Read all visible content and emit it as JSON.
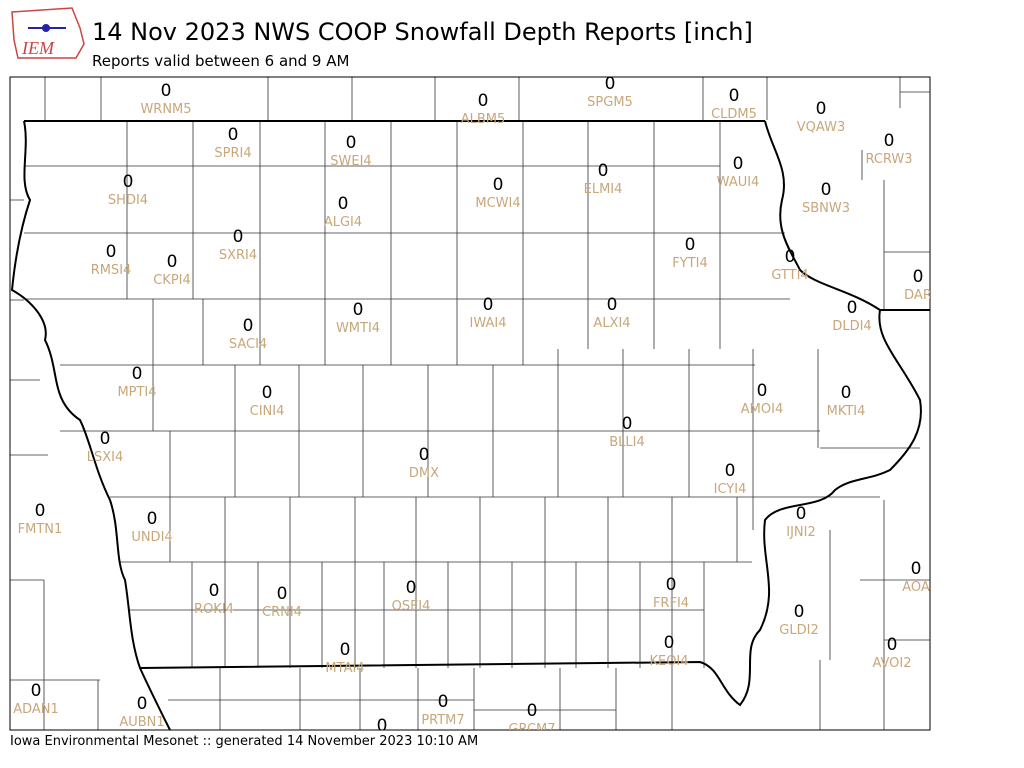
{
  "header": {
    "title": "14 Nov 2023 NWS COOP Snowfall Depth Reports [inch]",
    "subtitle": "Reports valid between 6 and 9 AM",
    "logo": "IEM"
  },
  "footer": "Iowa Environmental Mesonet :: generated 14 November 2023 10:10 AM",
  "stations": [
    {
      "label": "WRNM5",
      "value": 0
    },
    {
      "label": "ALBM5",
      "value": 0
    },
    {
      "label": "SPGM5",
      "value": 0
    },
    {
      "label": "CLDM5",
      "value": 0
    },
    {
      "label": "VQAW3",
      "value": 0
    },
    {
      "label": "RCRW3",
      "value": 0
    },
    {
      "label": "SPRI4",
      "value": 0
    },
    {
      "label": "SWEI4",
      "value": 0
    },
    {
      "label": "SHDI4",
      "value": 0
    },
    {
      "label": "ELMI4",
      "value": 0
    },
    {
      "label": "WAUI4",
      "value": 0
    },
    {
      "label": "MCWI4",
      "value": 0
    },
    {
      "label": "SBNW3",
      "value": 0
    },
    {
      "label": "ALGI4",
      "value": 0
    },
    {
      "label": "SXRI4",
      "value": 0
    },
    {
      "label": "FYTI4",
      "value": 0
    },
    {
      "label": "RMSI4",
      "value": 0
    },
    {
      "label": "CKPI4",
      "value": 0
    },
    {
      "label": "GTTI4",
      "value": 0
    },
    {
      "label": "DAR",
      "value": 0
    },
    {
      "label": "IWAI4",
      "value": 0
    },
    {
      "label": "ALXI4",
      "value": 0
    },
    {
      "label": "DLDI4",
      "value": 0
    },
    {
      "label": "WMTI4",
      "value": 0
    },
    {
      "label": "SACI4",
      "value": 0
    },
    {
      "label": "MPTI4",
      "value": 0
    },
    {
      "label": "CINI4",
      "value": 0
    },
    {
      "label": "AMOI4",
      "value": 0
    },
    {
      "label": "MKTI4",
      "value": 0
    },
    {
      "label": "BLLI4",
      "value": 0
    },
    {
      "label": "LSXI4",
      "value": 0
    },
    {
      "label": "DMX",
      "value": 0
    },
    {
      "label": "ICYI4",
      "value": 0
    },
    {
      "label": "FMTN1",
      "value": 0
    },
    {
      "label": "UNDI4",
      "value": 0
    },
    {
      "label": "IJNI2",
      "value": 0
    },
    {
      "label": "AOA",
      "value": 0
    },
    {
      "label": "FRFI4",
      "value": 0
    },
    {
      "label": "OSEI4",
      "value": 0
    },
    {
      "label": "ROKI4",
      "value": 0
    },
    {
      "label": "CRNI4",
      "value": 0
    },
    {
      "label": "GLDI2",
      "value": 0
    },
    {
      "label": "KEOI4",
      "value": 0
    },
    {
      "label": "AVOI2",
      "value": 0
    },
    {
      "label": "MTAI4",
      "value": 0
    },
    {
      "label": "ADAN1",
      "value": 0
    },
    {
      "label": "AUBN1",
      "value": 0
    },
    {
      "label": "PRTM7",
      "value": 0
    },
    {
      "label": "GRCM7",
      "value": 0
    },
    {
      "value": 0
    }
  ]
}
